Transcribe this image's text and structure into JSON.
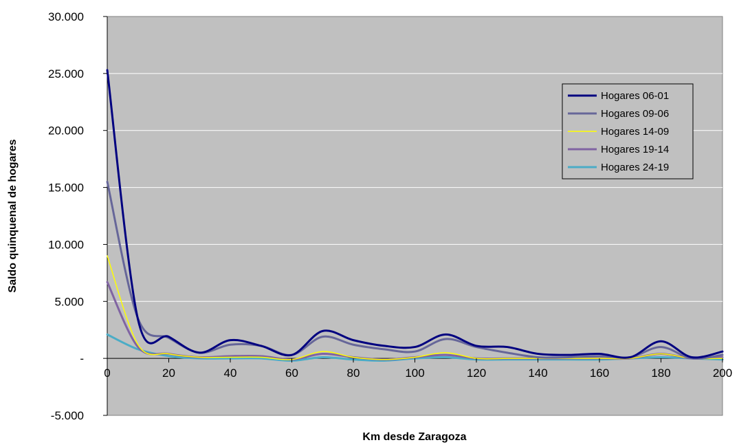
{
  "chart_data": {
    "type": "line",
    "xlabel": "Km desde Zaragoza",
    "ylabel": "Saldo quinquenal de hogares",
    "xlim": [
      0,
      200
    ],
    "ylim": [
      -5000,
      30000
    ],
    "x_ticks": [
      0,
      20,
      40,
      60,
      80,
      100,
      120,
      140,
      160,
      180,
      200
    ],
    "x_tick_labels": [
      "0",
      "20",
      "40",
      "60",
      "80",
      "100",
      "120",
      "140",
      "160",
      "180",
      "200"
    ],
    "y_ticks": [
      -5000,
      0,
      5000,
      10000,
      15000,
      20000,
      25000,
      30000
    ],
    "y_tick_labels": [
      "-5.000",
      "-",
      "5.000",
      "10.000",
      "15.000",
      "20.000",
      "25.000",
      "30.000"
    ],
    "grid": "horizontal",
    "legend_position": "top-right",
    "plot_background": "#C0C0C0",
    "x": [
      0,
      10,
      20,
      30,
      40,
      50,
      60,
      70,
      80,
      90,
      100,
      110,
      120,
      130,
      140,
      150,
      160,
      170,
      180,
      190,
      200
    ],
    "series": [
      {
        "name": "Hogares 06-01",
        "color": "#000080",
        "width": 3,
        "values": [
          25300,
          3400,
          1900,
          500,
          1600,
          1100,
          300,
          2400,
          1600,
          1100,
          1000,
          2100,
          1100,
          1000,
          400,
          300,
          400,
          100,
          1500,
          100,
          600
        ]
      },
      {
        "name": "Hogares 09-06",
        "color": "#666699",
        "width": 3,
        "values": [
          15500,
          3500,
          1800,
          500,
          1200,
          1100,
          300,
          1900,
          1200,
          800,
          600,
          1700,
          1000,
          500,
          100,
          100,
          200,
          100,
          1000,
          0,
          300
        ]
      },
      {
        "name": "Hogares 14-09",
        "color": "#FFFF00",
        "width": 1.5,
        "values": [
          9000,
          1200,
          400,
          100,
          100,
          100,
          -100,
          600,
          100,
          -100,
          100,
          500,
          0,
          0,
          0,
          0,
          0,
          0,
          400,
          0,
          0
        ]
      },
      {
        "name": "Hogares 19-14",
        "color": "#8064A2",
        "width": 3,
        "values": [
          6700,
          1000,
          400,
          100,
          200,
          200,
          -100,
          400,
          100,
          -100,
          100,
          300,
          0,
          0,
          0,
          0,
          0,
          0,
          400,
          0,
          100
        ]
      },
      {
        "name": "Hogares 24-19",
        "color": "#4BACC6",
        "width": 3,
        "values": [
          2100,
          800,
          200,
          0,
          0,
          0,
          -200,
          100,
          -100,
          -200,
          0,
          100,
          -100,
          -100,
          -100,
          -100,
          -100,
          0,
          100,
          0,
          -100
        ]
      }
    ]
  }
}
